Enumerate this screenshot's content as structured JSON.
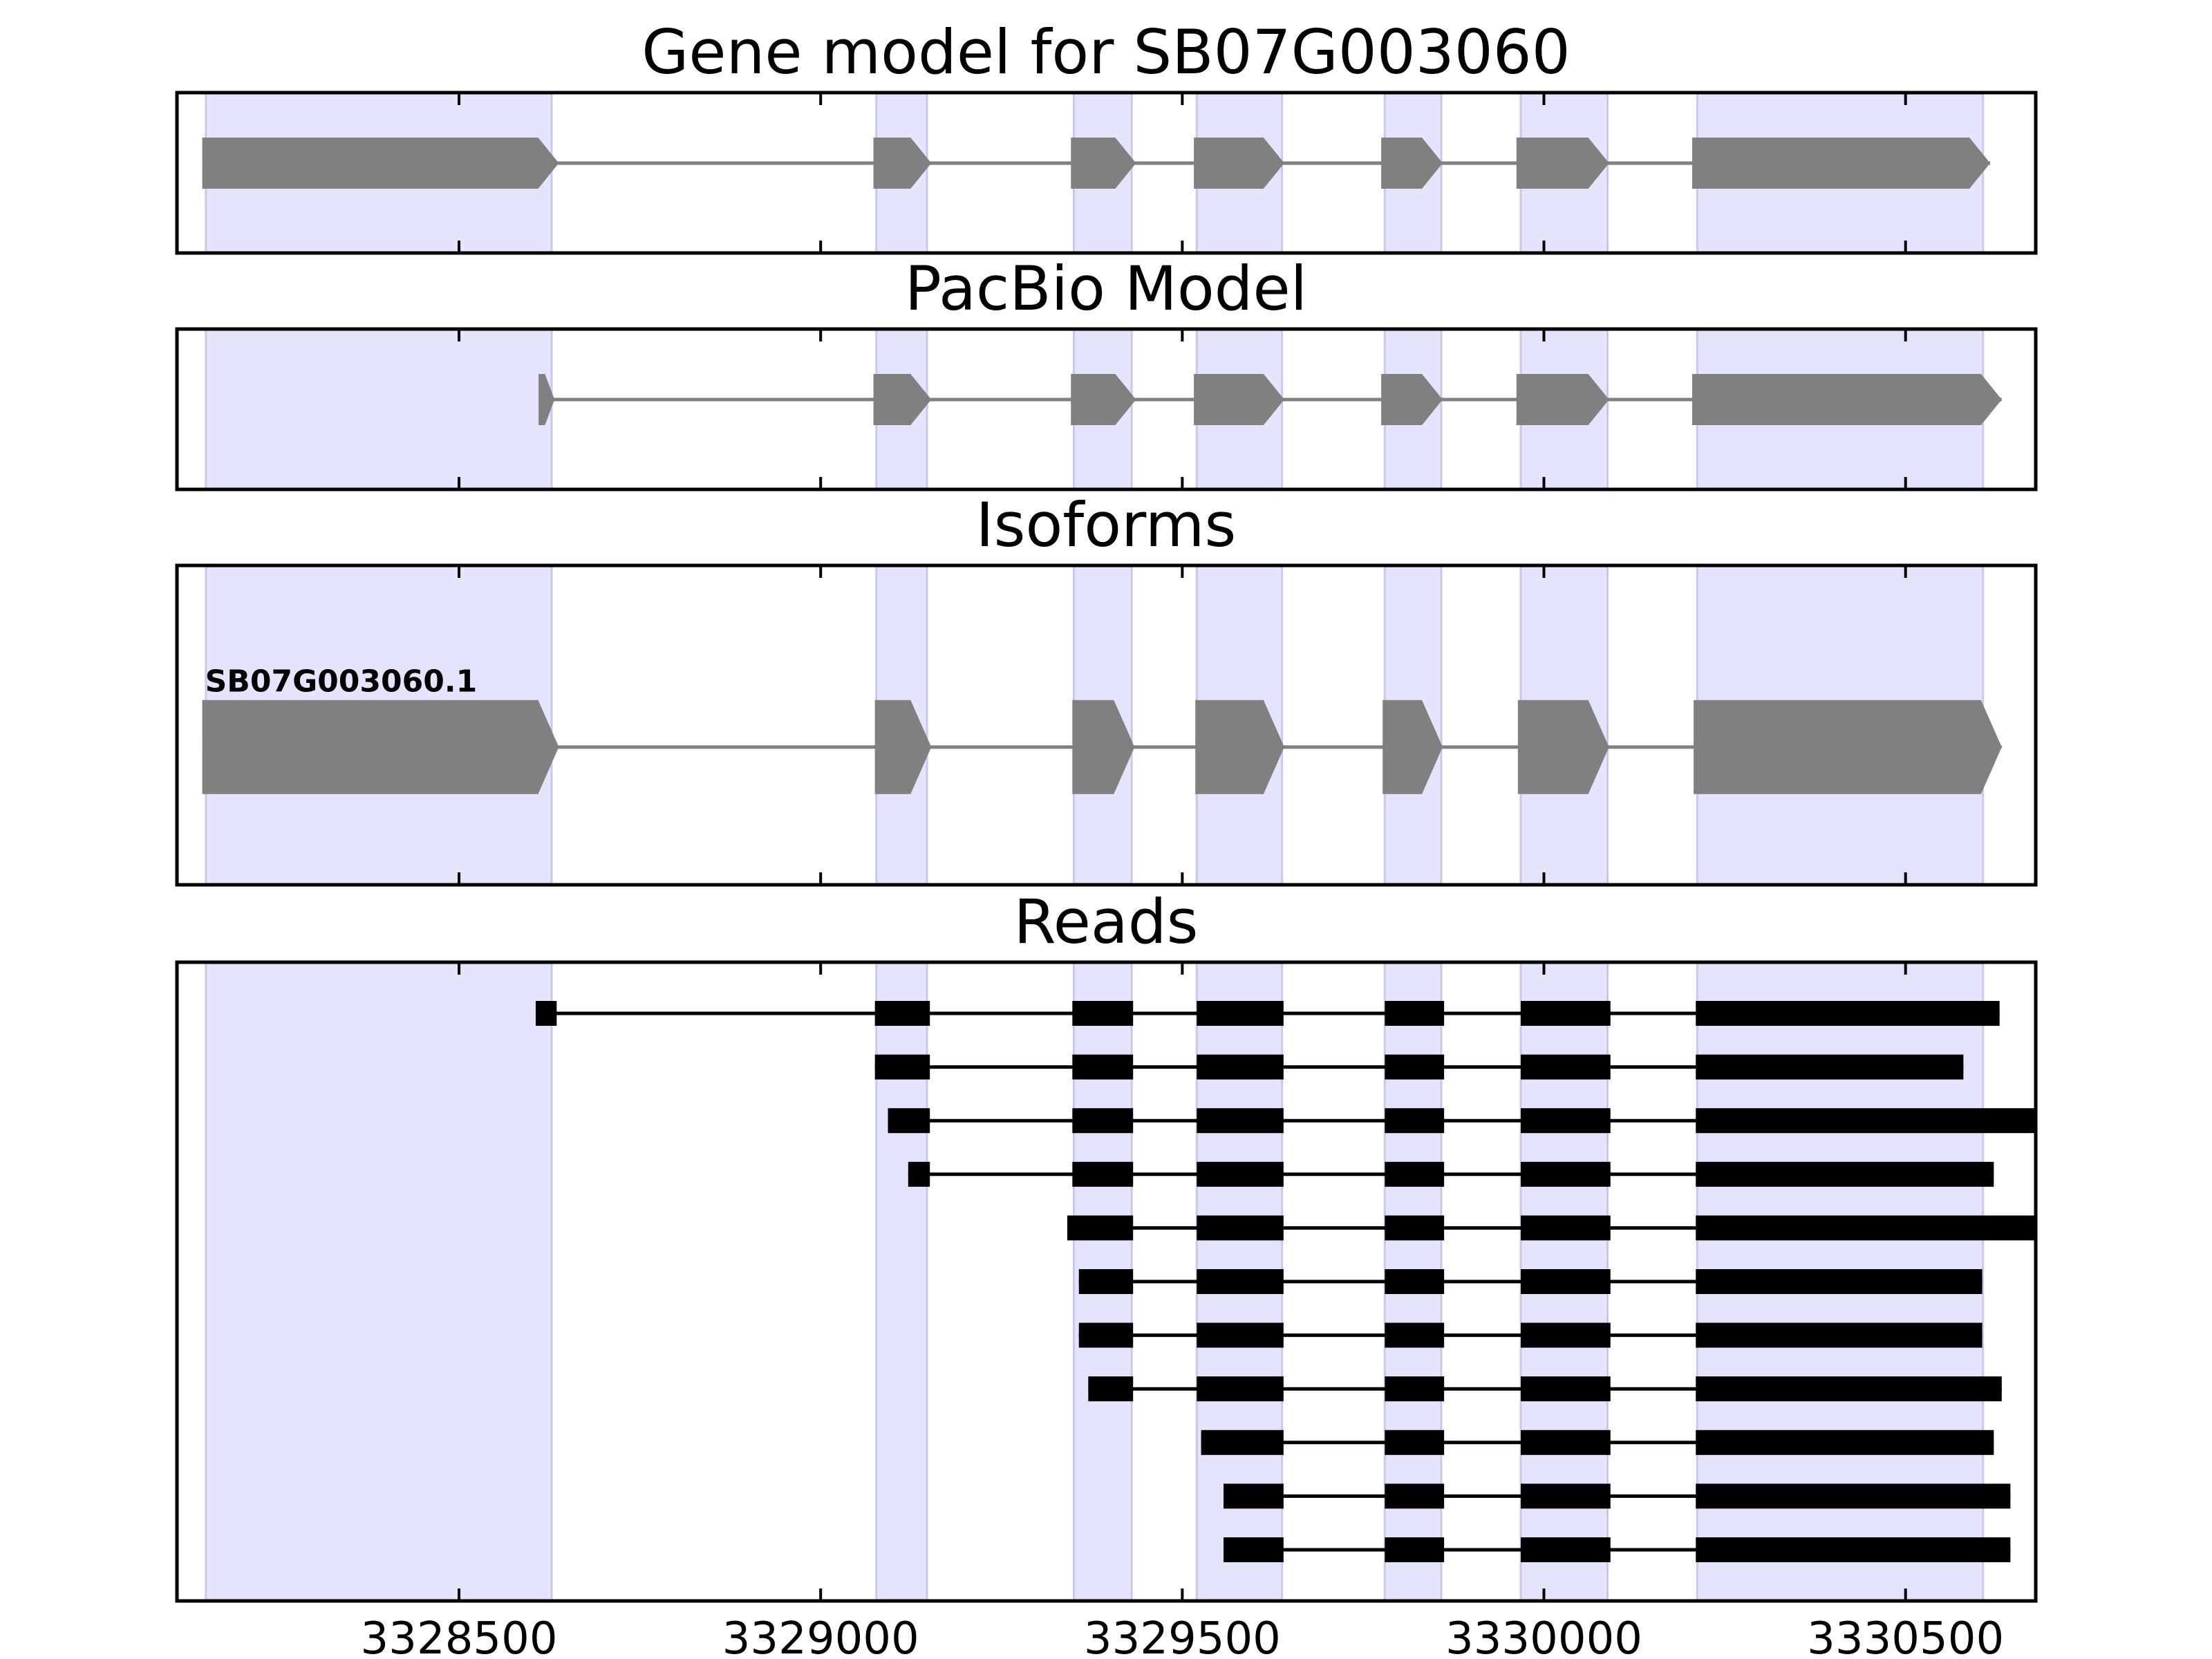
{
  "figure": {
    "colors": {
      "exon_band": "#e4e4fc",
      "exon_band_edge": "#c8c8ee",
      "model_fill": "#808080",
      "read_fill": "#000000",
      "frame": "#000000"
    }
  },
  "chart_data": {
    "type": "gene-structure",
    "xlim": [
      3328110,
      3330680
    ],
    "x_ticks": [
      3328500,
      3329000,
      3329500,
      3330000,
      3330500
    ],
    "x_tick_labels": [
      "3328500",
      "3329000",
      "3329500",
      "3330000",
      "3330500"
    ],
    "exon_regions": [
      [
        3328150,
        3328628
      ],
      [
        3329077,
        3329147
      ],
      [
        3329350,
        3329430
      ],
      [
        3329520,
        3329638
      ],
      [
        3329780,
        3329858
      ],
      [
        3329968,
        3330088
      ],
      [
        3330212,
        3330607
      ]
    ],
    "panels": [
      {
        "title": "Gene model for SB07G003060",
        "style": "arrow",
        "tracks": [
          {
            "label": "",
            "exons": [
              [
                3328145,
                3328638
              ],
              [
                3329073,
                3329153
              ],
              [
                3329346,
                3329436
              ],
              [
                3329516,
                3329641
              ],
              [
                3329775,
                3329860
              ],
              [
                3329962,
                3330090
              ],
              [
                3330205,
                3330617
              ]
            ]
          }
        ]
      },
      {
        "title": "PacBio Model",
        "style": "arrow",
        "tracks": [
          {
            "label": "",
            "exons": [
              [
                3328610,
                3328632
              ],
              [
                3329073,
                3329153
              ],
              [
                3329346,
                3329436
              ],
              [
                3329516,
                3329641
              ],
              [
                3329775,
                3329860
              ],
              [
                3329962,
                3330090
              ],
              [
                3330205,
                3330633
              ]
            ]
          }
        ]
      },
      {
        "title": "Isoforms",
        "style": "arrow",
        "tracks": [
          {
            "label": "SB07G003060.1",
            "exons": [
              [
                3328145,
                3328638
              ],
              [
                3329075,
                3329153
              ],
              [
                3329348,
                3329434
              ],
              [
                3329518,
                3329641
              ],
              [
                3329777,
                3329860
              ],
              [
                3329964,
                3330090
              ],
              [
                3330207,
                3330633
              ]
            ]
          }
        ]
      },
      {
        "title": "Reads",
        "style": "block",
        "tracks": [
          {
            "label": "",
            "exons": [
              [
                3328606,
                3328635
              ],
              [
                3329075,
                3329151
              ],
              [
                3329348,
                3329432
              ],
              [
                3329520,
                3329640
              ],
              [
                3329780,
                3329862
              ],
              [
                3329968,
                3330092
              ],
              [
                3330210,
                3330630
              ]
            ]
          },
          {
            "label": "",
            "exons": [
              [
                3329075,
                3329151
              ],
              [
                3329348,
                3329432
              ],
              [
                3329520,
                3329640
              ],
              [
                3329780,
                3329862
              ],
              [
                3329968,
                3330092
              ],
              [
                3330210,
                3330580
              ]
            ]
          },
          {
            "label": "",
            "exons": [
              [
                3329093,
                3329151
              ],
              [
                3329348,
                3329432
              ],
              [
                3329520,
                3329640
              ],
              [
                3329780,
                3329862
              ],
              [
                3329968,
                3330092
              ],
              [
                3330210,
                3330680
              ]
            ]
          },
          {
            "label": "",
            "exons": [
              [
                3329121,
                3329151
              ],
              [
                3329348,
                3329432
              ],
              [
                3329520,
                3329640
              ],
              [
                3329780,
                3329862
              ],
              [
                3329968,
                3330092
              ],
              [
                3330210,
                3330622
              ]
            ]
          },
          {
            "label": "",
            "exons": [
              [
                3329341,
                3329432
              ],
              [
                3329520,
                3329640
              ],
              [
                3329780,
                3329862
              ],
              [
                3329968,
                3330092
              ],
              [
                3330210,
                3330680
              ]
            ]
          },
          {
            "label": "",
            "exons": [
              [
                3329357,
                3329432
              ],
              [
                3329520,
                3329640
              ],
              [
                3329780,
                3329862
              ],
              [
                3329968,
                3330092
              ],
              [
                3330210,
                3330606
              ]
            ]
          },
          {
            "label": "",
            "exons": [
              [
                3329357,
                3329432
              ],
              [
                3329520,
                3329640
              ],
              [
                3329780,
                3329862
              ],
              [
                3329968,
                3330092
              ],
              [
                3330210,
                3330606
              ]
            ]
          },
          {
            "label": "",
            "exons": [
              [
                3329370,
                3329432
              ],
              [
                3329520,
                3329640
              ],
              [
                3329780,
                3329862
              ],
              [
                3329968,
                3330092
              ],
              [
                3330210,
                3330633
              ]
            ]
          },
          {
            "label": "",
            "exons": [
              [
                3329526,
                3329640
              ],
              [
                3329780,
                3329862
              ],
              [
                3329968,
                3330092
              ],
              [
                3330210,
                3330622
              ]
            ]
          },
          {
            "label": "",
            "exons": [
              [
                3329557,
                3329640
              ],
              [
                3329780,
                3329862
              ],
              [
                3329968,
                3330092
              ],
              [
                3330210,
                3330645
              ]
            ]
          },
          {
            "label": "",
            "exons": [
              [
                3329557,
                3329640
              ],
              [
                3329780,
                3329862
              ],
              [
                3329968,
                3330092
              ],
              [
                3330210,
                3330645
              ]
            ]
          }
        ]
      }
    ]
  }
}
